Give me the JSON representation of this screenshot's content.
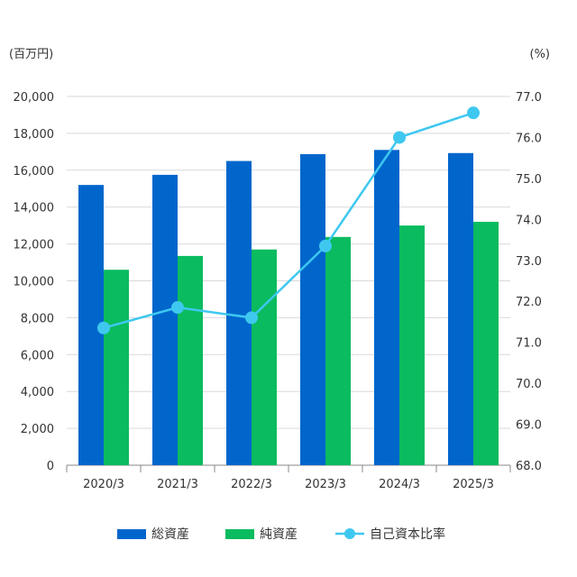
{
  "chart_data": {
    "type": "bar",
    "categories": [
      "2020/3",
      "2021/3",
      "2022/3",
      "2023/3",
      "2024/3",
      "2025/3"
    ],
    "left_unit": "(百万円)",
    "right_unit": "(%)",
    "left_axis": {
      "ylim": [
        0,
        20000
      ],
      "ticks": [
        "0",
        "2,000",
        "4,000",
        "6,000",
        "8,000",
        "10,000",
        "12,000",
        "14,000",
        "16,000",
        "18,000",
        "20,000"
      ]
    },
    "right_axis": {
      "ylim": [
        68.0,
        77.0
      ],
      "ticks": [
        "68.0",
        "69.0",
        "70.0",
        "71.0",
        "72.0",
        "73.0",
        "74.0",
        "75.0",
        "76.0",
        "77.0"
      ]
    },
    "grid": true,
    "legend_position": "bottom",
    "series": [
      {
        "name": "総資産",
        "kind": "bar",
        "axis": "left",
        "color": "#0066cc",
        "values": [
          15200,
          15750,
          16500,
          16870,
          17100,
          16930
        ]
      },
      {
        "name": "純資産",
        "kind": "bar",
        "axis": "left",
        "color": "#0abb5f",
        "values": [
          10600,
          11350,
          11700,
          12380,
          13000,
          13200
        ]
      },
      {
        "name": "自己資本比率",
        "kind": "line",
        "axis": "right",
        "color": "#3ec8f0",
        "values": [
          71.35,
          71.85,
          71.6,
          73.35,
          76.0,
          76.6
        ]
      }
    ]
  }
}
